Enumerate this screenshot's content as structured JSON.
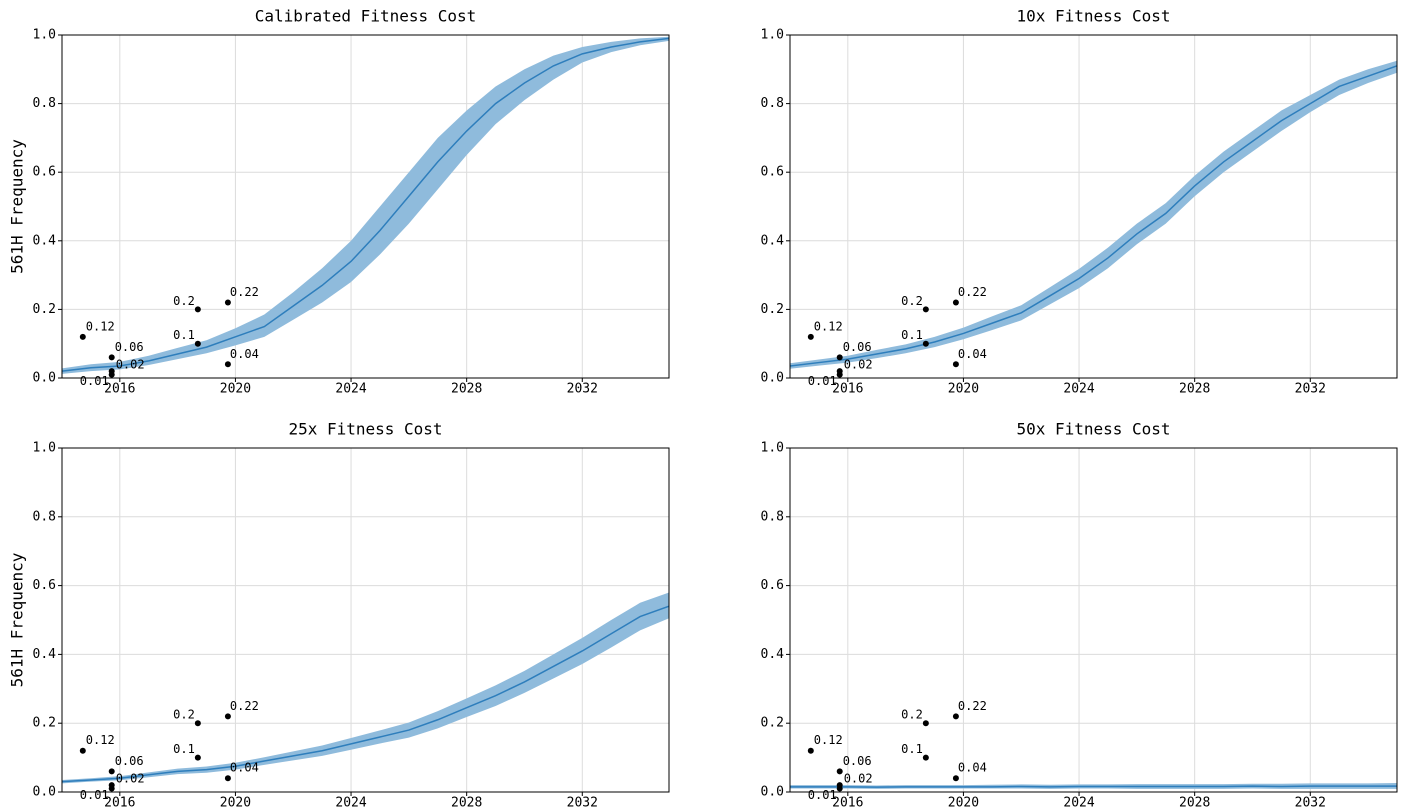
{
  "chart_data": [
    {
      "type": "line",
      "title": "Calibrated Fitness Cost",
      "ylabel": "561H Frequency",
      "x": [
        2014,
        2015,
        2016,
        2017,
        2018,
        2019,
        2020,
        2021,
        2022,
        2023,
        2024,
        2025,
        2026,
        2027,
        2028,
        2029,
        2030,
        2031,
        2032,
        2033,
        2034,
        2035
      ],
      "values": [
        0.02,
        0.03,
        0.035,
        0.05,
        0.07,
        0.09,
        0.12,
        0.15,
        0.21,
        0.27,
        0.34,
        0.43,
        0.53,
        0.63,
        0.72,
        0.8,
        0.86,
        0.91,
        0.945,
        0.965,
        0.98,
        0.99
      ],
      "lower": [
        0.012,
        0.02,
        0.025,
        0.038,
        0.055,
        0.072,
        0.095,
        0.12,
        0.17,
        0.22,
        0.28,
        0.36,
        0.45,
        0.55,
        0.65,
        0.74,
        0.81,
        0.87,
        0.92,
        0.95,
        0.97,
        0.983
      ],
      "upper": [
        0.028,
        0.04,
        0.047,
        0.065,
        0.088,
        0.11,
        0.145,
        0.185,
        0.25,
        0.32,
        0.4,
        0.5,
        0.6,
        0.7,
        0.78,
        0.85,
        0.9,
        0.94,
        0.965,
        0.98,
        0.99,
        0.995
      ],
      "color": "#2e7ebc",
      "band_color": "#8fbbdc",
      "points": {
        "x": [
          2014.72,
          2015.72,
          2015.72,
          2015.72,
          2018.7,
          2018.7,
          2019.74,
          2019.74
        ],
        "y": [
          0.12,
          0.06,
          0.01,
          0.02,
          0.2,
          0.1,
          0.22,
          0.04
        ],
        "color": "#000000"
      },
      "xlim": [
        2014,
        2035
      ],
      "xticks": [
        2016,
        2020,
        2024,
        2028,
        2032
      ],
      "ylim": [
        0,
        1
      ],
      "yticks": [
        {
          "value": 0,
          "label": "0.0"
        },
        0.2,
        0.4,
        0.6,
        0.8,
        {
          "value": 1,
          "label": "1.0"
        }
      ],
      "grid": true
    },
    {
      "type": "line",
      "title": "10x Fitness Cost",
      "x": [
        2014,
        2015,
        2016,
        2017,
        2018,
        2019,
        2020,
        2021,
        2022,
        2023,
        2024,
        2025,
        2026,
        2027,
        2028,
        2029,
        2030,
        2031,
        2032,
        2033,
        2034,
        2035
      ],
      "values": [
        0.035,
        0.045,
        0.055,
        0.07,
        0.085,
        0.105,
        0.13,
        0.16,
        0.19,
        0.24,
        0.29,
        0.35,
        0.42,
        0.48,
        0.56,
        0.63,
        0.69,
        0.75,
        0.8,
        0.85,
        0.88,
        0.91
      ],
      "lower": [
        0.027,
        0.036,
        0.045,
        0.058,
        0.072,
        0.09,
        0.113,
        0.14,
        0.168,
        0.215,
        0.262,
        0.32,
        0.39,
        0.45,
        0.53,
        0.6,
        0.66,
        0.72,
        0.775,
        0.825,
        0.86,
        0.89
      ],
      "upper": [
        0.043,
        0.054,
        0.065,
        0.082,
        0.098,
        0.12,
        0.147,
        0.18,
        0.212,
        0.265,
        0.318,
        0.38,
        0.45,
        0.51,
        0.59,
        0.66,
        0.72,
        0.78,
        0.825,
        0.87,
        0.9,
        0.925
      ],
      "color": "#2e7ebc",
      "band_color": "#8fbbdc",
      "points": {
        "x": [
          2014.72,
          2015.72,
          2015.72,
          2015.72,
          2018.7,
          2018.7,
          2019.74,
          2019.74
        ],
        "y": [
          0.12,
          0.06,
          0.01,
          0.02,
          0.2,
          0.1,
          0.22,
          0.04
        ],
        "color": "#000000"
      },
      "xlim": [
        2014,
        2035
      ],
      "xticks": [
        2016,
        2020,
        2024,
        2028,
        2032
      ],
      "ylim": [
        0,
        1
      ],
      "yticks": [
        {
          "value": 0,
          "label": "0.0"
        },
        0.2,
        0.4,
        0.6,
        0.8,
        {
          "value": 1,
          "label": "1.0"
        }
      ],
      "grid": true
    },
    {
      "type": "line",
      "title": "25x Fitness Cost",
      "ylabel": "561H Frequency",
      "x": [
        2014,
        2015,
        2016,
        2017,
        2018,
        2019,
        2020,
        2021,
        2022,
        2023,
        2024,
        2025,
        2026,
        2027,
        2028,
        2029,
        2030,
        2031,
        2032,
        2033,
        2034,
        2035
      ],
      "values": [
        0.03,
        0.035,
        0.04,
        0.05,
        0.06,
        0.065,
        0.075,
        0.09,
        0.105,
        0.12,
        0.14,
        0.16,
        0.18,
        0.21,
        0.245,
        0.28,
        0.32,
        0.365,
        0.41,
        0.46,
        0.51,
        0.54
      ],
      "lower": [
        0.025,
        0.03,
        0.034,
        0.043,
        0.052,
        0.056,
        0.065,
        0.079,
        0.092,
        0.105,
        0.123,
        0.141,
        0.158,
        0.185,
        0.218,
        0.25,
        0.288,
        0.33,
        0.372,
        0.42,
        0.47,
        0.505
      ],
      "upper": [
        0.035,
        0.04,
        0.046,
        0.057,
        0.068,
        0.074,
        0.085,
        0.101,
        0.118,
        0.135,
        0.157,
        0.179,
        0.202,
        0.235,
        0.272,
        0.31,
        0.352,
        0.4,
        0.448,
        0.5,
        0.55,
        0.58
      ],
      "color": "#2e7ebc",
      "band_color": "#8fbbdc",
      "points": {
        "x": [
          2014.72,
          2015.72,
          2015.72,
          2015.72,
          2018.7,
          2018.7,
          2019.74,
          2019.74
        ],
        "y": [
          0.12,
          0.06,
          0.01,
          0.02,
          0.2,
          0.1,
          0.22,
          0.04
        ],
        "color": "#000000"
      },
      "xlim": [
        2014,
        2035
      ],
      "xticks": [
        2016,
        2020,
        2024,
        2028,
        2032
      ],
      "ylim": [
        0,
        1
      ],
      "yticks": [
        {
          "value": 0,
          "label": "0.0"
        },
        0.2,
        0.4,
        0.6,
        0.8,
        {
          "value": 1,
          "label": "1.0"
        }
      ],
      "grid": true
    },
    {
      "type": "line",
      "title": "50x Fitness Cost",
      "x": [
        2014,
        2015,
        2016,
        2017,
        2018,
        2019,
        2020,
        2021,
        2022,
        2023,
        2024,
        2025,
        2026,
        2027,
        2028,
        2029,
        2030,
        2031,
        2032,
        2033,
        2034,
        2035
      ],
      "values": [
        0.015,
        0.015,
        0.015,
        0.014,
        0.015,
        0.015,
        0.015,
        0.015,
        0.016,
        0.015,
        0.016,
        0.016,
        0.016,
        0.016,
        0.016,
        0.016,
        0.017,
        0.016,
        0.017,
        0.017,
        0.017,
        0.017
      ],
      "lower": [
        0.01,
        0.01,
        0.01,
        0.009,
        0.01,
        0.01,
        0.01,
        0.01,
        0.01,
        0.009,
        0.01,
        0.01,
        0.009,
        0.009,
        0.009,
        0.009,
        0.01,
        0.009,
        0.009,
        0.009,
        0.009,
        0.009
      ],
      "upper": [
        0.02,
        0.02,
        0.02,
        0.019,
        0.02,
        0.02,
        0.02,
        0.021,
        0.022,
        0.021,
        0.022,
        0.022,
        0.023,
        0.023,
        0.023,
        0.023,
        0.024,
        0.024,
        0.025,
        0.025,
        0.025,
        0.026
      ],
      "color": "#2e7ebc",
      "band_color": "#8fbbdc",
      "points": {
        "x": [
          2014.72,
          2015.72,
          2015.72,
          2015.72,
          2018.7,
          2018.7,
          2019.74,
          2019.74
        ],
        "y": [
          0.12,
          0.06,
          0.01,
          0.02,
          0.2,
          0.1,
          0.22,
          0.04
        ],
        "color": "#000000"
      },
      "xlim": [
        2014,
        2035
      ],
      "xticks": [
        2016,
        2020,
        2024,
        2028,
        2032
      ],
      "ylim": [
        0,
        1
      ],
      "yticks": [
        {
          "value": 0,
          "label": "0.0"
        },
        0.2,
        0.4,
        0.6,
        0.8,
        {
          "value": 1,
          "label": "1.0"
        }
      ],
      "grid": true
    }
  ]
}
